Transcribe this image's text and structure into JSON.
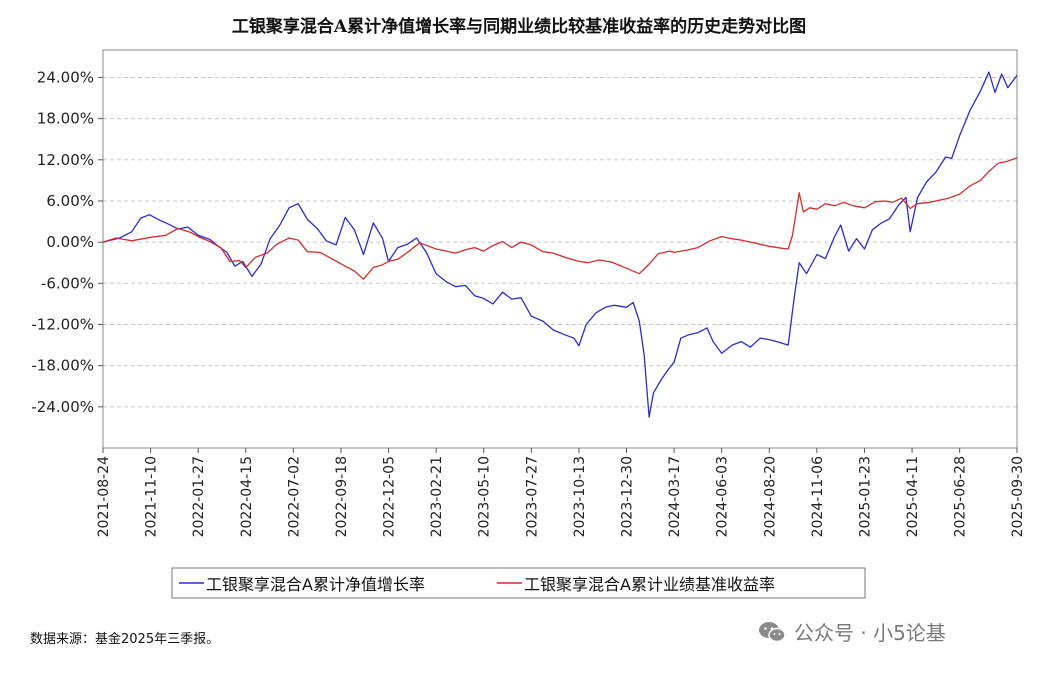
{
  "chart_data": {
    "type": "line",
    "title": "工银聚享混合A累计净值增长率与同期业绩比较基准收益率的历史走势对比图",
    "ylim": [
      -30,
      28
    ],
    "yticks": [
      24,
      18,
      12,
      6,
      0,
      -6,
      -12,
      -18,
      -24
    ],
    "ytick_labels": [
      "24.00%",
      "18.00%",
      "12.00%",
      "6.00%",
      "0.00%",
      "-6.00%",
      "-12.00%",
      "-18.00%",
      "-24.00%"
    ],
    "xticks": [
      "2021-08-24",
      "2021-11-10",
      "2022-01-27",
      "2022-04-15",
      "2022-07-02",
      "2022-09-18",
      "2022-12-05",
      "2023-02-21",
      "2023-05-10",
      "2023-07-27",
      "2023-10-13",
      "2023-12-30",
      "2024-03-17",
      "2024-06-03",
      "2024-08-20",
      "2024-11-06",
      "2025-01-23",
      "2025-04-11",
      "2025-06-28",
      "2025-09-30"
    ],
    "x_range": [
      "2021-08-24",
      "2025-09-30"
    ],
    "grid": true,
    "legend_position": "bottom",
    "series": [
      {
        "name": "工银聚享混合A累计净值增长率",
        "color": "#2b2bd0",
        "points": [
          [
            "2021-08-24",
            0.0
          ],
          [
            "2021-09-20",
            0.6
          ],
          [
            "2021-10-10",
            1.5
          ],
          [
            "2021-10-25",
            3.5
          ],
          [
            "2021-11-08",
            4.0
          ],
          [
            "2021-11-25",
            3.2
          ],
          [
            "2021-12-10",
            2.6
          ],
          [
            "2021-12-25",
            1.9
          ],
          [
            "2022-01-10",
            2.2
          ],
          [
            "2022-01-27",
            1.0
          ],
          [
            "2022-02-15",
            0.4
          ],
          [
            "2022-03-01",
            -0.6
          ],
          [
            "2022-03-15",
            -1.5
          ],
          [
            "2022-03-28",
            -3.5
          ],
          [
            "2022-04-10",
            -2.8
          ],
          [
            "2022-04-25",
            -5.0
          ],
          [
            "2022-05-10",
            -3.2
          ],
          [
            "2022-05-25",
            0.5
          ],
          [
            "2022-06-10",
            2.5
          ],
          [
            "2022-06-25",
            5.0
          ],
          [
            "2022-07-10",
            5.6
          ],
          [
            "2022-07-25",
            3.3
          ],
          [
            "2022-08-10",
            2.0
          ],
          [
            "2022-08-25",
            0.2
          ],
          [
            "2022-09-10",
            -0.4
          ],
          [
            "2022-09-25",
            3.6
          ],
          [
            "2022-10-10",
            1.8
          ],
          [
            "2022-10-25",
            -1.8
          ],
          [
            "2022-11-10",
            2.8
          ],
          [
            "2022-11-25",
            0.6
          ],
          [
            "2022-12-05",
            -2.8
          ],
          [
            "2022-12-20",
            -0.8
          ],
          [
            "2023-01-05",
            -0.3
          ],
          [
            "2023-01-20",
            0.6
          ],
          [
            "2023-02-05",
            -1.5
          ],
          [
            "2023-02-21",
            -4.6
          ],
          [
            "2023-03-10",
            -5.8
          ],
          [
            "2023-03-25",
            -6.5
          ],
          [
            "2023-04-10",
            -6.3
          ],
          [
            "2023-04-25",
            -7.8
          ],
          [
            "2023-05-10",
            -8.2
          ],
          [
            "2023-05-25",
            -9.0
          ],
          [
            "2023-06-10",
            -7.3
          ],
          [
            "2023-06-25",
            -8.3
          ],
          [
            "2023-07-10",
            -8.1
          ],
          [
            "2023-07-27",
            -10.8
          ],
          [
            "2023-08-15",
            -11.5
          ],
          [
            "2023-09-01",
            -12.8
          ],
          [
            "2023-09-20",
            -13.5
          ],
          [
            "2023-10-05",
            -14.0
          ],
          [
            "2023-10-13",
            -15.1
          ],
          [
            "2023-10-25",
            -12.0
          ],
          [
            "2023-11-10",
            -10.3
          ],
          [
            "2023-11-25",
            -9.5
          ],
          [
            "2023-12-10",
            -9.2
          ],
          [
            "2023-12-30",
            -9.5
          ],
          [
            "2024-01-10",
            -8.8
          ],
          [
            "2024-01-20",
            -11.5
          ],
          [
            "2024-01-28",
            -16.5
          ],
          [
            "2024-02-05",
            -25.5
          ],
          [
            "2024-02-12",
            -22.0
          ],
          [
            "2024-02-25",
            -20.0
          ],
          [
            "2024-03-08",
            -18.5
          ],
          [
            "2024-03-17",
            -17.5
          ],
          [
            "2024-03-28",
            -14.0
          ],
          [
            "2024-04-10",
            -13.5
          ],
          [
            "2024-04-25",
            -13.2
          ],
          [
            "2024-05-10",
            -12.5
          ],
          [
            "2024-05-20",
            -14.5
          ],
          [
            "2024-06-03",
            -16.2
          ],
          [
            "2024-06-20",
            -15.0
          ],
          [
            "2024-07-05",
            -14.5
          ],
          [
            "2024-07-20",
            -15.3
          ],
          [
            "2024-08-05",
            -14.0
          ],
          [
            "2024-08-20",
            -14.2
          ],
          [
            "2024-09-05",
            -14.6
          ],
          [
            "2024-09-20",
            -15.0
          ],
          [
            "2024-09-30",
            -8.0
          ],
          [
            "2024-10-08",
            -3.0
          ],
          [
            "2024-10-20",
            -4.6
          ],
          [
            "2024-11-06",
            -1.8
          ],
          [
            "2024-11-20",
            -2.4
          ],
          [
            "2024-12-05",
            0.8
          ],
          [
            "2024-12-15",
            2.5
          ],
          [
            "2024-12-28",
            -1.3
          ],
          [
            "2025-01-10",
            0.5
          ],
          [
            "2025-01-23",
            -1.0
          ],
          [
            "2025-02-05",
            1.8
          ],
          [
            "2025-02-20",
            2.8
          ],
          [
            "2025-03-05",
            3.4
          ],
          [
            "2025-03-20",
            5.4
          ],
          [
            "2025-04-01",
            6.5
          ],
          [
            "2025-04-08",
            1.5
          ],
          [
            "2025-04-20",
            6.5
          ],
          [
            "2025-05-05",
            8.8
          ],
          [
            "2025-05-20",
            10.2
          ],
          [
            "2025-06-05",
            12.4
          ],
          [
            "2025-06-15",
            12.2
          ],
          [
            "2025-06-28",
            15.5
          ],
          [
            "2025-07-15",
            19.2
          ],
          [
            "2025-08-01",
            22.0
          ],
          [
            "2025-08-15",
            24.8
          ],
          [
            "2025-08-25",
            21.8
          ],
          [
            "2025-09-05",
            24.5
          ],
          [
            "2025-09-15",
            22.5
          ],
          [
            "2025-09-30",
            24.3
          ]
        ]
      },
      {
        "name": "工银聚享混合A累计业绩基准收益率",
        "color": "#d62b2b",
        "points": [
          [
            "2021-08-24",
            0.0
          ],
          [
            "2021-09-15",
            0.6
          ],
          [
            "2021-10-10",
            0.2
          ],
          [
            "2021-11-10",
            0.7
          ],
          [
            "2021-12-05",
            1.0
          ],
          [
            "2021-12-25",
            2.0
          ],
          [
            "2022-01-15",
            1.4
          ],
          [
            "2022-01-27",
            0.8
          ],
          [
            "2022-02-15",
            0.1
          ],
          [
            "2022-03-05",
            -0.8
          ],
          [
            "2022-03-20",
            -2.8
          ],
          [
            "2022-04-05",
            -2.7
          ],
          [
            "2022-04-15",
            -3.7
          ],
          [
            "2022-05-01",
            -2.2
          ],
          [
            "2022-05-20",
            -1.6
          ],
          [
            "2022-06-05",
            -0.3
          ],
          [
            "2022-06-25",
            0.6
          ],
          [
            "2022-07-10",
            0.3
          ],
          [
            "2022-07-25",
            -1.4
          ],
          [
            "2022-08-15",
            -1.5
          ],
          [
            "2022-09-05",
            -2.5
          ],
          [
            "2022-09-25",
            -3.5
          ],
          [
            "2022-10-10",
            -4.2
          ],
          [
            "2022-10-25",
            -5.4
          ],
          [
            "2022-11-10",
            -3.7
          ],
          [
            "2022-11-25",
            -3.3
          ],
          [
            "2022-12-05",
            -2.8
          ],
          [
            "2022-12-20",
            -2.5
          ],
          [
            "2023-01-05",
            -1.5
          ],
          [
            "2023-01-25",
            -0.1
          ],
          [
            "2023-02-21",
            -1.0
          ],
          [
            "2023-03-10",
            -1.3
          ],
          [
            "2023-03-25",
            -1.6
          ],
          [
            "2023-04-10",
            -1.1
          ],
          [
            "2023-04-25",
            -0.8
          ],
          [
            "2023-05-10",
            -1.3
          ],
          [
            "2023-05-25",
            -0.5
          ],
          [
            "2023-06-10",
            0.1
          ],
          [
            "2023-06-25",
            -0.8
          ],
          [
            "2023-07-10",
            0.0
          ],
          [
            "2023-07-27",
            -0.4
          ],
          [
            "2023-08-15",
            -1.4
          ],
          [
            "2023-09-01",
            -1.6
          ],
          [
            "2023-09-20",
            -2.2
          ],
          [
            "2023-10-13",
            -2.8
          ],
          [
            "2023-10-28",
            -3.0
          ],
          [
            "2023-11-15",
            -2.6
          ],
          [
            "2023-12-05",
            -2.9
          ],
          [
            "2023-12-30",
            -3.8
          ],
          [
            "2024-01-20",
            -4.6
          ],
          [
            "2024-02-05",
            -3.2
          ],
          [
            "2024-02-20",
            -1.7
          ],
          [
            "2024-03-10",
            -1.3
          ],
          [
            "2024-03-17",
            -1.5
          ],
          [
            "2024-04-05",
            -1.2
          ],
          [
            "2024-04-25",
            -0.8
          ],
          [
            "2024-05-15",
            0.2
          ],
          [
            "2024-06-03",
            0.8
          ],
          [
            "2024-06-20",
            0.5
          ],
          [
            "2024-07-05",
            0.3
          ],
          [
            "2024-07-25",
            -0.1
          ],
          [
            "2024-08-20",
            -0.6
          ],
          [
            "2024-09-10",
            -0.9
          ],
          [
            "2024-09-20",
            -1.0
          ],
          [
            "2024-09-27",
            1.0
          ],
          [
            "2024-10-08",
            7.2
          ],
          [
            "2024-10-15",
            4.4
          ],
          [
            "2024-10-25",
            5.0
          ],
          [
            "2024-11-06",
            4.8
          ],
          [
            "2024-11-20",
            5.6
          ],
          [
            "2024-12-05",
            5.3
          ],
          [
            "2024-12-20",
            5.8
          ],
          [
            "2025-01-05",
            5.3
          ],
          [
            "2025-01-23",
            5.0
          ],
          [
            "2025-02-10",
            5.9
          ],
          [
            "2025-02-25",
            6.0
          ],
          [
            "2025-03-10",
            5.8
          ],
          [
            "2025-03-25",
            6.4
          ],
          [
            "2025-04-08",
            4.9
          ],
          [
            "2025-04-20",
            5.6
          ],
          [
            "2025-05-10",
            5.8
          ],
          [
            "2025-05-25",
            6.1
          ],
          [
            "2025-06-10",
            6.4
          ],
          [
            "2025-06-28",
            7.0
          ],
          [
            "2025-07-15",
            8.2
          ],
          [
            "2025-08-01",
            9.0
          ],
          [
            "2025-08-15",
            10.3
          ],
          [
            "2025-08-30",
            11.5
          ],
          [
            "2025-09-15",
            11.8
          ],
          [
            "2025-09-30",
            12.3
          ]
        ]
      }
    ]
  },
  "footer": {
    "source": "数据来源：基金2025年三季报。",
    "watermark": "公众号 · 小5论基"
  }
}
